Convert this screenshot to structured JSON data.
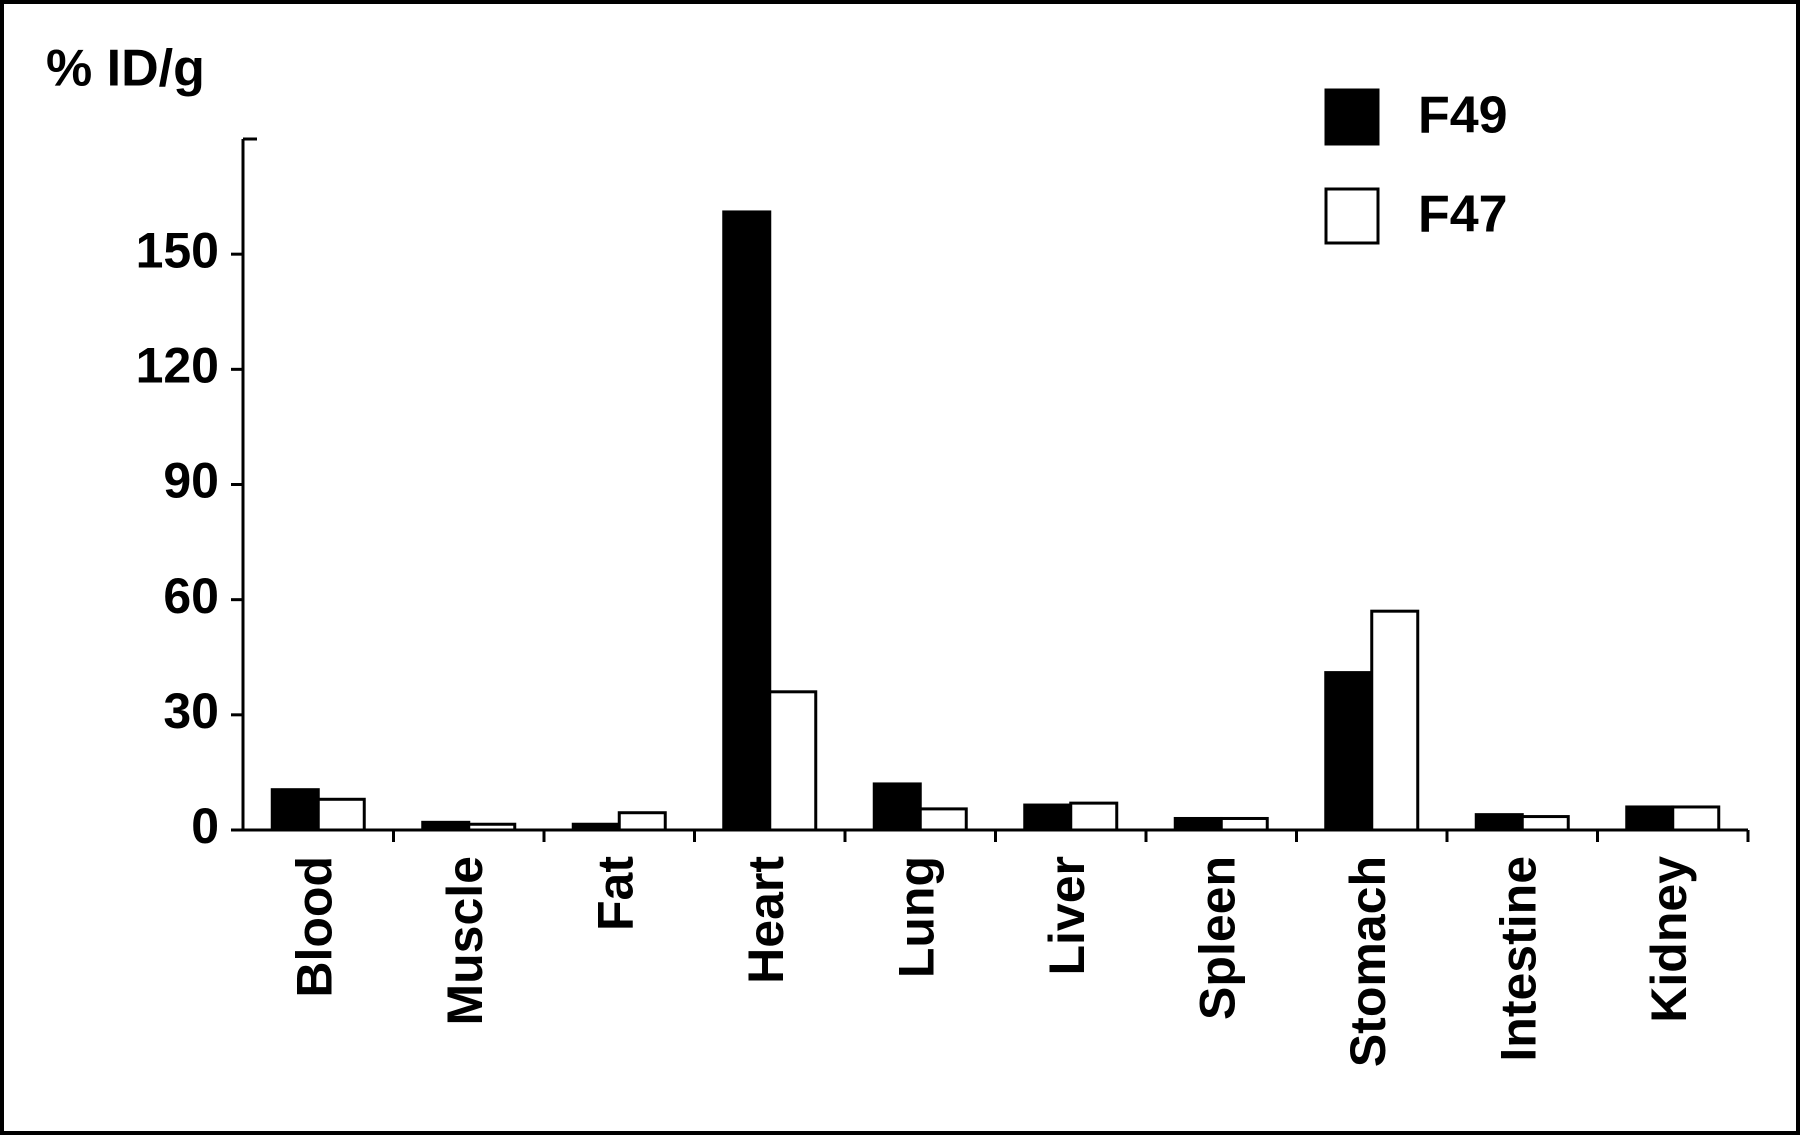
{
  "chart_data": {
    "type": "bar",
    "y_label": "% ID/g",
    "categories": [
      "Blood",
      "Muscle",
      "Fat",
      "Heart",
      "Lung",
      "Liver",
      "Spleen",
      "Stomach",
      "Intestine",
      "Kidney"
    ],
    "series": [
      {
        "name": "F49",
        "color": "#000000",
        "values": [
          10.5,
          2,
          1.5,
          161,
          12,
          6.5,
          3,
          41,
          4,
          6
        ]
      },
      {
        "name": "F47",
        "color": "#ffffff",
        "values": [
          8,
          1.5,
          4.5,
          36,
          5.5,
          7,
          3,
          57,
          3.5,
          6
        ]
      }
    ],
    "ylim": [
      0,
      180
    ],
    "yticks": [
      0,
      30,
      60,
      90,
      120,
      150
    ],
    "legend": "upper right"
  }
}
